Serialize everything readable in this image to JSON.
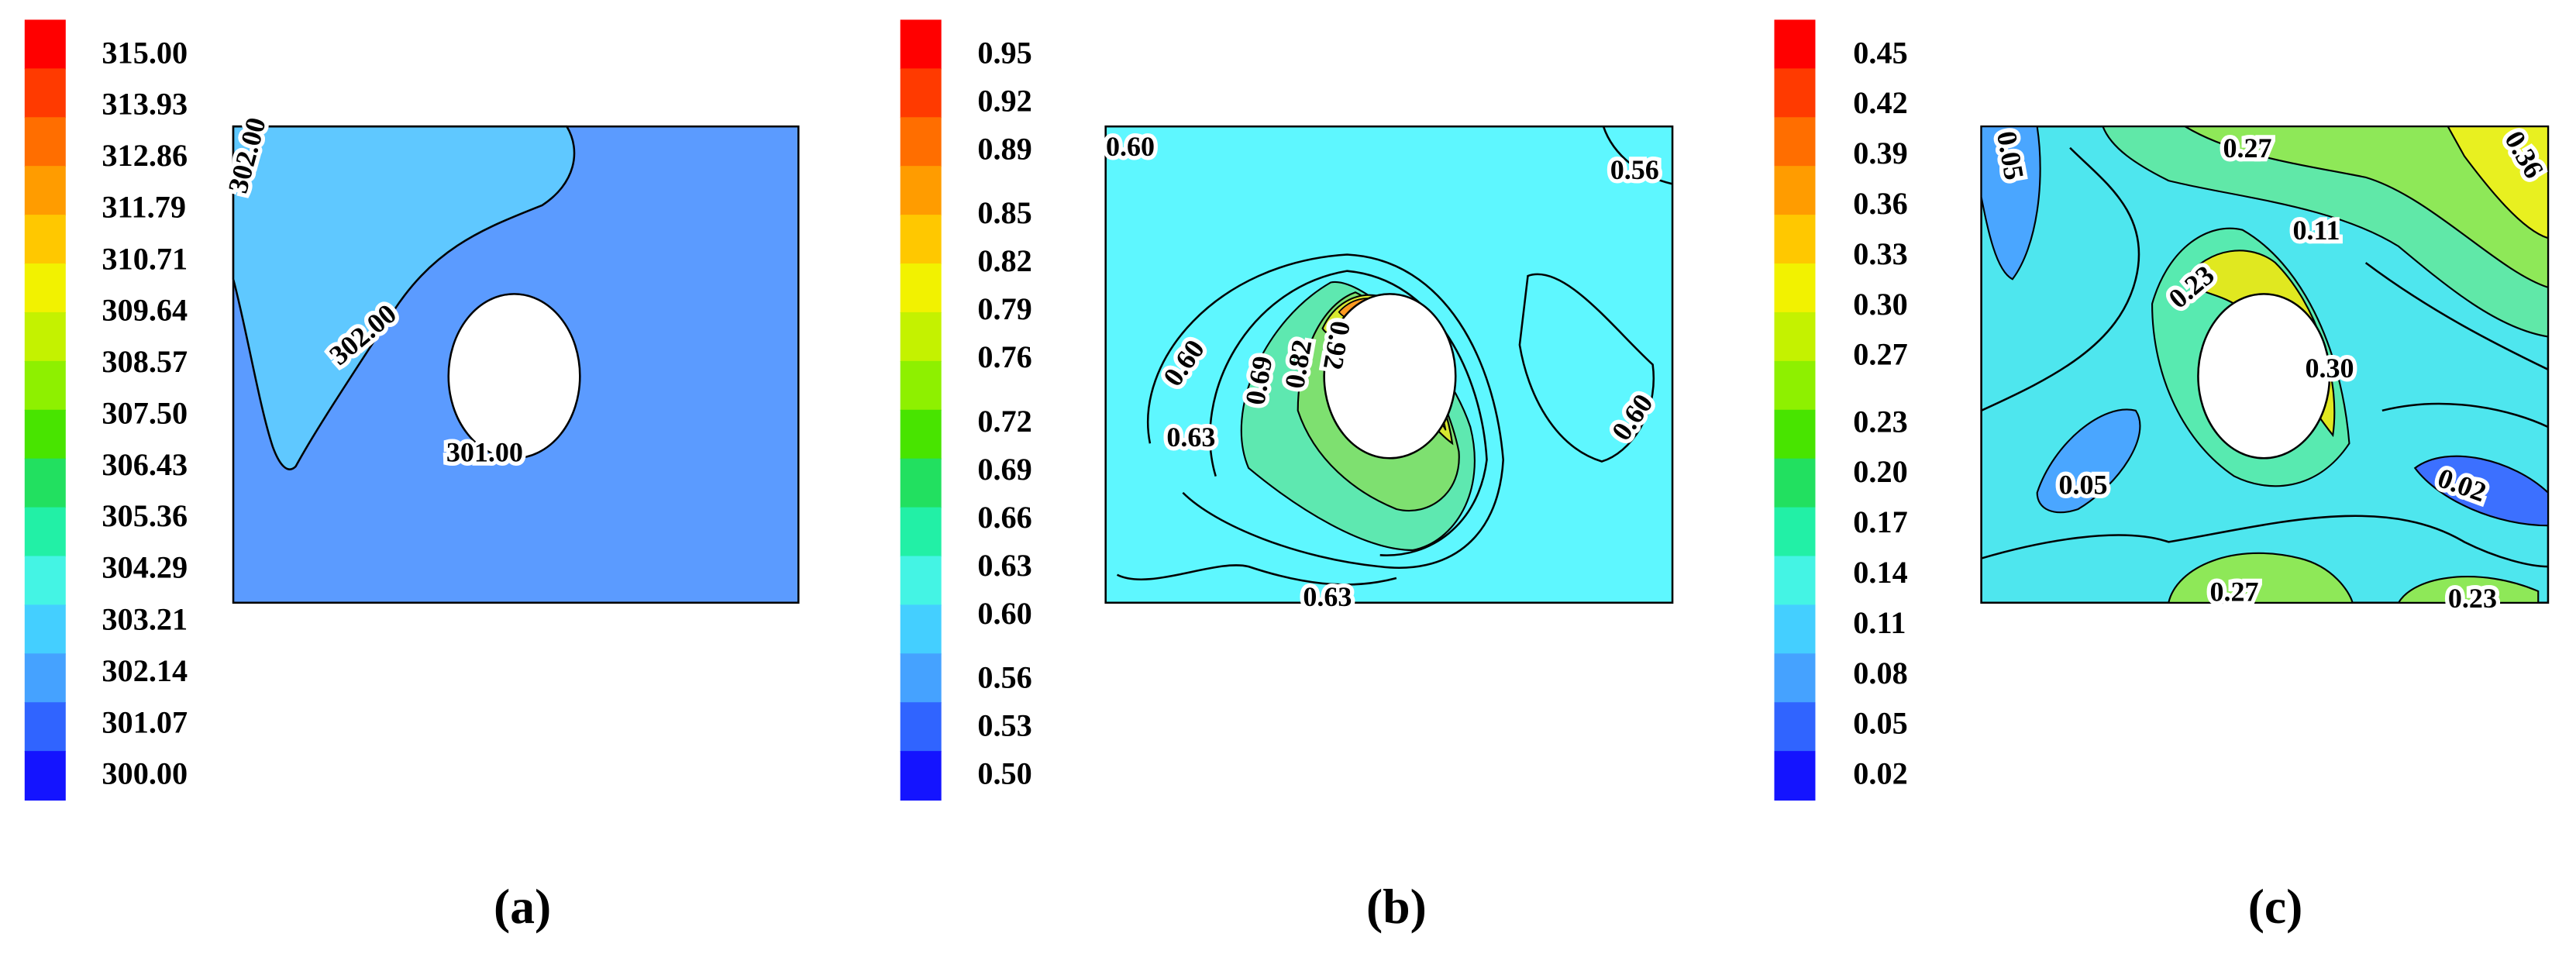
{
  "chart_data": [
    {
      "type": "contour",
      "panel_label": "(a)",
      "clim": [
        300,
        315
      ],
      "colorbar_ticks": [
        {
          "value": 315,
          "label": "315.00"
        },
        313.93,
        312.86,
        311.79,
        310.71,
        309.64,
        308.57,
        {
          "value": 307.5,
          "label": "307.50"
        },
        306.43,
        305.36,
        304.29,
        303.21,
        302.14,
        301.07,
        {
          "value": 300,
          "label": "300.00"
        }
      ],
      "colorbar_colors": [
        "#ff0000",
        "#ff3a00",
        "#ff6e00",
        "#ff9c00",
        "#ffc800",
        "#f2f200",
        "#c4f200",
        "#8ef000",
        "#48e400",
        "#22e060",
        "#22f0a6",
        "#44f4e4",
        "#44cfff",
        "#45a2ff",
        "#3064ff",
        "#1414ff"
      ],
      "contour_labels": [
        {
          "value": 302,
          "label": "302.00"
        },
        {
          "value": 302,
          "label": "302.00"
        },
        {
          "value": 301,
          "label": "301.00"
        }
      ]
    },
    {
      "type": "contour",
      "panel_label": "(b)",
      "clim": [
        0.5,
        0.95
      ],
      "colorbar_ticks": [
        0.95,
        0.92,
        0.89,
        0.85,
        0.82,
        0.79,
        0.76,
        0.72,
        0.69,
        0.66,
        0.63,
        {
          "value": 0.6,
          "label": "0.60"
        },
        0.56,
        0.53,
        {
          "value": 0.5,
          "label": "0.50"
        }
      ],
      "colorbar_colors": [
        "#ff0000",
        "#ff3a00",
        "#ff6e00",
        "#ff9c00",
        "#ffc800",
        "#f2f200",
        "#c4f200",
        "#8ef000",
        "#48e400",
        "#22e060",
        "#22f0a6",
        "#44f4e4",
        "#44cfff",
        "#45a2ff",
        "#3064ff",
        "#1414ff"
      ],
      "contour_labels": [
        {
          "value": 0.6,
          "label": "0.60"
        },
        0.56,
        {
          "value": 0.6,
          "label": "0.60"
        },
        0.63,
        0.69,
        0.82,
        0.92,
        {
          "value": 0.6,
          "label": "0.60"
        },
        0.63
      ]
    },
    {
      "type": "contour",
      "panel_label": "(c)",
      "clim": [
        0.02,
        0.45
      ],
      "colorbar_ticks": [
        0.45,
        0.42,
        0.39,
        0.36,
        0.33,
        {
          "value": 0.3,
          "label": "0.30"
        },
        0.27,
        0.23,
        {
          "value": 0.2,
          "label": "0.20"
        },
        0.17,
        0.14,
        0.11,
        0.08,
        0.05,
        0.02
      ],
      "colorbar_colors": [
        "#ff0000",
        "#ff3a00",
        "#ff6e00",
        "#ff9c00",
        "#ffc800",
        "#f2f200",
        "#c4f200",
        "#8ef000",
        "#48e400",
        "#22e060",
        "#22f0a6",
        "#44f4e4",
        "#44cfff",
        "#45a2ff",
        "#3064ff",
        "#1414ff"
      ],
      "contour_labels": [
        0.05,
        0.27,
        0.36,
        0.11,
        0.23,
        {
          "value": 0.3,
          "label": "0.30"
        },
        0.05,
        0.02,
        0.27,
        0.23
      ]
    }
  ]
}
